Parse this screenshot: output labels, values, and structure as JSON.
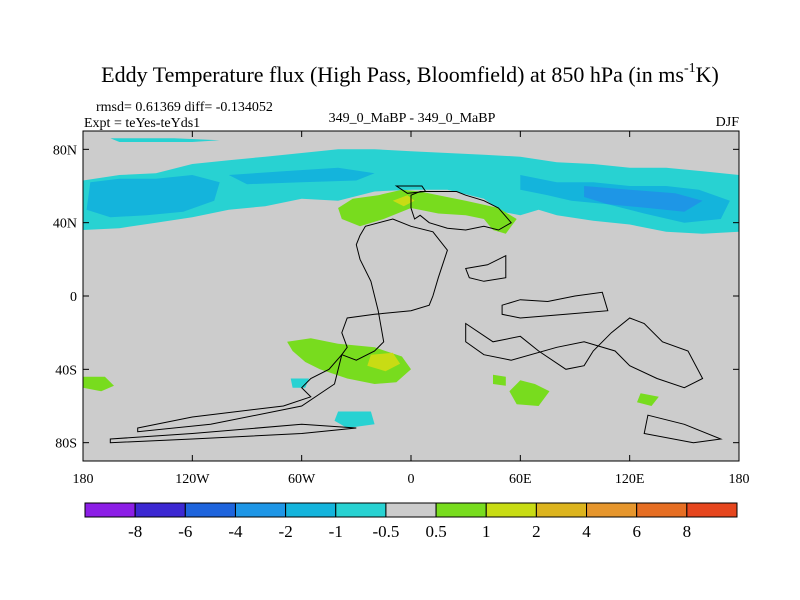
{
  "chart_data": {
    "type": "heatmap",
    "title": "Eddy Temperature flux (High Pass, Bloomfield) at 850 hPa (in ms",
    "title_superscript": "-1",
    "title_suffix": "K)",
    "rmsd_line": "rmsd= 0.61369 diff= -0.134052",
    "expt_line": "Expt = teYes-teYds1",
    "center_label": "349_0_MaBP - 349_0_MaBP",
    "season": "DJF",
    "x_ticks": [
      {
        "value": -180,
        "label": "180"
      },
      {
        "value": -120,
        "label": "120W"
      },
      {
        "value": -60,
        "label": "60W"
      },
      {
        "value": 0,
        "label": "0"
      },
      {
        "value": 60,
        "label": "60E"
      },
      {
        "value": 120,
        "label": "120E"
      },
      {
        "value": 180,
        "label": "180"
      }
    ],
    "y_ticks": [
      {
        "value": 80,
        "label": "80N"
      },
      {
        "value": 40,
        "label": "40N"
      },
      {
        "value": 0,
        "label": "0"
      },
      {
        "value": -40,
        "label": "40S"
      },
      {
        "value": -80,
        "label": "80S"
      }
    ],
    "xlim": [
      -180,
      180
    ],
    "ylim": [
      -90,
      90
    ],
    "background_category": "-0.5 to 0.5",
    "background_color": "#cccccc",
    "colorbar": {
      "colors": [
        "#8c1ee6",
        "#3c28d2",
        "#1e64dc",
        "#1e96e6",
        "#14b4dc",
        "#28d2d2",
        "#cccccc",
        "#78dc1e",
        "#c8dc14",
        "#dcb41e",
        "#e6962d",
        "#e66e23",
        "#e6461e"
      ],
      "labels": [
        "-8",
        "-6",
        "-4",
        "-2",
        "-1",
        "-0.5",
        "0.5",
        "1",
        "2",
        "4",
        "6",
        "8"
      ]
    },
    "regions": [
      {
        "name": "northern-storm-track",
        "value": -0.8,
        "color": "#28d2d2",
        "points": [
          [
            -180,
            63
          ],
          [
            -160,
            66
          ],
          [
            -140,
            67
          ],
          [
            -120,
            72
          ],
          [
            -100,
            74
          ],
          [
            -80,
            76
          ],
          [
            -60,
            78
          ],
          [
            -40,
            80
          ],
          [
            -20,
            80
          ],
          [
            0,
            79
          ],
          [
            20,
            78
          ],
          [
            40,
            77
          ],
          [
            60,
            76
          ],
          [
            80,
            73
          ],
          [
            100,
            72
          ],
          [
            120,
            70
          ],
          [
            140,
            70
          ],
          [
            160,
            68
          ],
          [
            180,
            66
          ],
          [
            180,
            35
          ],
          [
            160,
            34
          ],
          [
            140,
            35
          ],
          [
            120,
            39
          ],
          [
            100,
            41
          ],
          [
            80,
            44
          ],
          [
            70,
            47
          ],
          [
            60,
            44
          ],
          [
            50,
            46
          ],
          [
            40,
            53
          ],
          [
            20,
            58
          ],
          [
            0,
            58
          ],
          [
            -20,
            57
          ],
          [
            -40,
            52
          ],
          [
            -60,
            53
          ],
          [
            -80,
            49
          ],
          [
            -100,
            47
          ],
          [
            -120,
            43
          ],
          [
            -140,
            40
          ],
          [
            -160,
            37
          ],
          [
            -180,
            36
          ]
        ]
      },
      {
        "name": "north-pacific-core",
        "value": -1.5,
        "color": "#14b4dc",
        "points": [
          [
            -176,
            62
          ],
          [
            -160,
            64
          ],
          [
            -140,
            64
          ],
          [
            -120,
            66
          ],
          [
            -105,
            62
          ],
          [
            -108,
            52
          ],
          [
            -125,
            46
          ],
          [
            -145,
            44
          ],
          [
            -165,
            43
          ],
          [
            -178,
            47
          ]
        ]
      },
      {
        "name": "atlantic-core",
        "value": -1.5,
        "color": "#14b4dc",
        "points": [
          [
            -100,
            66
          ],
          [
            -70,
            68
          ],
          [
            -40,
            70
          ],
          [
            -20,
            67
          ],
          [
            -30,
            63
          ],
          [
            -60,
            62
          ],
          [
            -90,
            61
          ]
        ]
      },
      {
        "name": "asia-core",
        "value": -1.5,
        "color": "#14b4dc",
        "points": [
          [
            60,
            66
          ],
          [
            80,
            62
          ],
          [
            100,
            62
          ],
          [
            120,
            60
          ],
          [
            140,
            60
          ],
          [
            158,
            58
          ],
          [
            175,
            52
          ],
          [
            170,
            42
          ],
          [
            150,
            40
          ],
          [
            128,
            45
          ],
          [
            108,
            50
          ],
          [
            88,
            52
          ],
          [
            75,
            55
          ],
          [
            60,
            58
          ]
        ]
      },
      {
        "name": "asia-inner-core",
        "value": -2.5,
        "color": "#1e96e6",
        "points": [
          [
            95,
            60
          ],
          [
            120,
            58
          ],
          [
            145,
            56
          ],
          [
            160,
            52
          ],
          [
            150,
            46
          ],
          [
            130,
            48
          ],
          [
            108,
            50
          ],
          [
            95,
            54
          ]
        ]
      },
      {
        "name": "arctic-strip",
        "value": -0.8,
        "color": "#28d2d2",
        "points": [
          [
            -165,
            86
          ],
          [
            -130,
            86
          ],
          [
            -105,
            85
          ],
          [
            -120,
            84
          ],
          [
            -160,
            84
          ]
        ]
      },
      {
        "name": "europe-positive",
        "value": 0.8,
        "color": "#78dc1e",
        "points": [
          [
            -40,
            48
          ],
          [
            -32,
            53
          ],
          [
            -18,
            55
          ],
          [
            -5,
            58
          ],
          [
            5,
            57
          ],
          [
            15,
            55
          ],
          [
            30,
            52
          ],
          [
            48,
            48
          ],
          [
            58,
            42
          ],
          [
            52,
            34
          ],
          [
            45,
            36
          ],
          [
            40,
            42
          ],
          [
            30,
            44
          ],
          [
            15,
            45
          ],
          [
            0,
            48
          ],
          [
            -15,
            42
          ],
          [
            -28,
            38
          ],
          [
            -38,
            42
          ]
        ]
      },
      {
        "name": "europe-positive-inner",
        "value": 1.5,
        "color": "#c8dc14",
        "points": [
          [
            -10,
            52
          ],
          [
            -2,
            55
          ],
          [
            2,
            52
          ],
          [
            -4,
            49
          ]
        ]
      },
      {
        "name": "south-atlantic-positive",
        "value": 0.8,
        "color": "#78dc1e",
        "points": [
          [
            -68,
            -25
          ],
          [
            -55,
            -23
          ],
          [
            -40,
            -26
          ],
          [
            -20,
            -28
          ],
          [
            -5,
            -33
          ],
          [
            0,
            -40
          ],
          [
            -8,
            -47
          ],
          [
            -20,
            -48
          ],
          [
            -35,
            -45
          ],
          [
            -50,
            -40
          ],
          [
            -58,
            -36
          ],
          [
            -65,
            -30
          ]
        ]
      },
      {
        "name": "south-atlantic-positive-inner",
        "value": 1.5,
        "color": "#c8dc14",
        "points": [
          [
            -22,
            -32
          ],
          [
            -10,
            -31
          ],
          [
            -6,
            -37
          ],
          [
            -14,
            -41
          ],
          [
            -24,
            -38
          ]
        ]
      },
      {
        "name": "south-indian-positive",
        "value": 0.8,
        "color": "#78dc1e",
        "points": [
          [
            60,
            -46
          ],
          [
            68,
            -48
          ],
          [
            76,
            -52
          ],
          [
            70,
            -60
          ],
          [
            58,
            -59
          ],
          [
            54,
            -52
          ]
        ]
      },
      {
        "name": "south-indian-small",
        "value": 0.8,
        "color": "#78dc1e",
        "points": [
          [
            45,
            -43
          ],
          [
            52,
            -44
          ],
          [
            52,
            -49
          ],
          [
            45,
            -48
          ]
        ]
      },
      {
        "name": "south-pacific-positive",
        "value": 0.8,
        "color": "#78dc1e",
        "points": [
          [
            -180,
            -44
          ],
          [
            -168,
            -44
          ],
          [
            -163,
            -49
          ],
          0,
          [
            -170,
            -52
          ],
          [
            -180,
            -50
          ]
        ]
      },
      {
        "name": "australia-south-positive",
        "value": 0.8,
        "color": "#78dc1e",
        "points": [
          [
            126,
            -53
          ],
          [
            136,
            -55
          ],
          [
            132,
            -60
          ],
          [
            124,
            -58
          ]
        ]
      },
      {
        "name": "south-negative-1",
        "value": -0.8,
        "color": "#28d2d2",
        "points": [
          [
            -40,
            -63
          ],
          [
            -22,
            -63
          ],
          [
            -20,
            -70
          ],
          0,
          [
            -35,
            -72
          ],
          [
            -42,
            -68
          ]
        ]
      },
      {
        "name": "south-negative-2",
        "value": -0.8,
        "color": "#28d2d2",
        "points": [
          [
            -66,
            -45
          ],
          [
            -56,
            -45
          ],
          [
            -58,
            -50
          ],
          [
            -65,
            -50
          ]
        ]
      }
    ],
    "coastlines": [
      [
        [
          0,
          55
        ],
        [
          5,
          57
        ],
        [
          25,
          57
        ],
        [
          30,
          55
        ],
        [
          40,
          52
        ],
        [
          48,
          48
        ],
        [
          55,
          40
        ],
        [
          48,
          36
        ],
        [
          40,
          38
        ],
        [
          30,
          36
        ],
        [
          20,
          37
        ],
        [
          10,
          40
        ],
        [
          5,
          44
        ],
        [
          2,
          42
        ],
        [
          0,
          48
        ]
      ],
      [
        [
          -28,
          33
        ],
        [
          -25,
          38
        ],
        [
          -10,
          42
        ],
        [
          0,
          38
        ],
        [
          12,
          35
        ],
        [
          20,
          25
        ],
        [
          15,
          10
        ],
        [
          12,
          0
        ],
        [
          10,
          -5
        ],
        [
          0,
          -8
        ],
        [
          -20,
          -10
        ],
        [
          -35,
          -12
        ],
        [
          -38,
          -20
        ],
        [
          -35,
          -28
        ],
        [
          -38,
          -32
        ],
        [
          -30,
          -35
        ],
        [
          -20,
          -30
        ],
        [
          -15,
          -25
        ],
        [
          -18,
          -8
        ],
        [
          -22,
          8
        ],
        [
          -28,
          20
        ],
        [
          -30,
          28
        ]
      ],
      [
        [
          -150,
          -72
        ],
        [
          -120,
          -66
        ],
        [
          -70,
          -60
        ],
        [
          -55,
          -55
        ],
        [
          -60,
          -50
        ],
        [
          -55,
          -45
        ],
        [
          -45,
          -40
        ],
        [
          -38,
          -32
        ],
        [
          -42,
          -48
        ],
        [
          -60,
          -60
        ],
        [
          -110,
          -70
        ],
        [
          -150,
          -74
        ]
      ],
      [
        [
          -165,
          -78
        ],
        [
          -120,
          -75
        ],
        [
          -60,
          -70
        ],
        [
          -30,
          -72
        ],
        [
          -60,
          -75
        ],
        [
          -120,
          -78
        ],
        [
          -165,
          -80
        ]
      ],
      [
        [
          30,
          -15
        ],
        [
          45,
          -25
        ],
        [
          60,
          -22
        ],
        [
          70,
          -30
        ],
        [
          85,
          -40
        ],
        [
          95,
          -38
        ],
        [
          100,
          -30
        ],
        [
          110,
          -20
        ],
        [
          120,
          -12
        ],
        [
          128,
          -15
        ],
        [
          138,
          -25
        ],
        [
          152,
          -30
        ],
        [
          160,
          -45
        ],
        [
          150,
          -50
        ],
        [
          135,
          -45
        ],
        [
          120,
          -38
        ],
        [
          112,
          -30
        ],
        [
          95,
          -25
        ],
        [
          80,
          -28
        ],
        [
          55,
          -35
        ],
        [
          40,
          -32
        ],
        [
          30,
          -25
        ]
      ],
      [
        [
          130,
          -65
        ],
        [
          150,
          -70
        ],
        [
          170,
          -78
        ],
        [
          155,
          -80
        ],
        [
          128,
          -75
        ]
      ],
      [
        [
          50,
          -5
        ],
        [
          60,
          -2
        ],
        [
          75,
          -3
        ],
        [
          90,
          0
        ],
        [
          105,
          2
        ],
        [
          108,
          -8
        ],
        [
          85,
          -10
        ],
        [
          60,
          -12
        ],
        [
          50,
          -10
        ]
      ],
      [
        [
          30,
          15
        ],
        [
          42,
          17
        ],
        [
          52,
          22
        ],
        [
          52,
          10
        ],
        [
          40,
          8
        ],
        [
          32,
          10
        ]
      ],
      [
        [
          -8,
          60
        ],
        [
          6,
          60
        ],
        [
          8,
          57
        ],
        [
          -2,
          56
        ]
      ]
    ]
  }
}
